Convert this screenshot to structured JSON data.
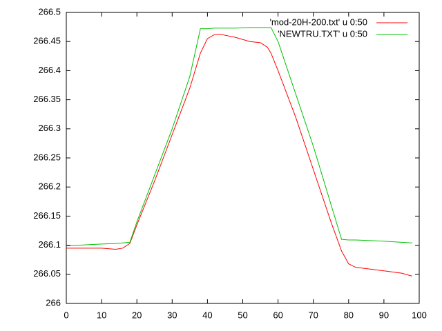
{
  "chart_data": {
    "type": "line",
    "x": [
      0,
      10,
      14,
      16,
      18,
      20,
      25,
      30,
      35,
      38,
      40,
      42,
      44,
      48,
      52,
      55,
      57,
      58,
      60,
      65,
      70,
      75,
      78,
      80,
      82,
      90,
      95,
      98
    ],
    "series": [
      {
        "name": "'mod-20H-200.txt' u 0:50",
        "color": "#ff0000",
        "values": [
          266.095,
          266.095,
          266.093,
          266.095,
          266.103,
          266.135,
          266.21,
          266.29,
          266.37,
          266.43,
          266.455,
          266.462,
          266.462,
          266.457,
          266.45,
          266.448,
          266.44,
          266.43,
          266.4,
          266.32,
          266.23,
          266.14,
          266.09,
          266.068,
          266.062,
          266.056,
          266.052,
          266.047
        ]
      },
      {
        "name": "'NEWTRU.TXT' u 0:50",
        "color": "#00c000",
        "values": [
          266.099,
          266.102,
          266.103,
          266.104,
          266.105,
          266.14,
          266.22,
          266.3,
          266.39,
          266.472,
          266.472,
          266.473,
          266.473,
          266.473,
          266.474,
          266.474,
          266.474,
          266.474,
          266.45,
          266.36,
          266.27,
          266.17,
          266.11,
          266.109,
          266.109,
          266.107,
          266.105,
          266.104
        ]
      }
    ],
    "xlim": [
      0,
      100
    ],
    "xticks": [
      0,
      10,
      20,
      30,
      40,
      50,
      60,
      70,
      80,
      90,
      100
    ],
    "ylim": [
      266,
      266.5
    ],
    "yticks": [
      266,
      266.05,
      266.1,
      266.15,
      266.2,
      266.25,
      266.3,
      266.35,
      266.4,
      266.45,
      266.5
    ],
    "legend": "top-right",
    "grid": false
  }
}
